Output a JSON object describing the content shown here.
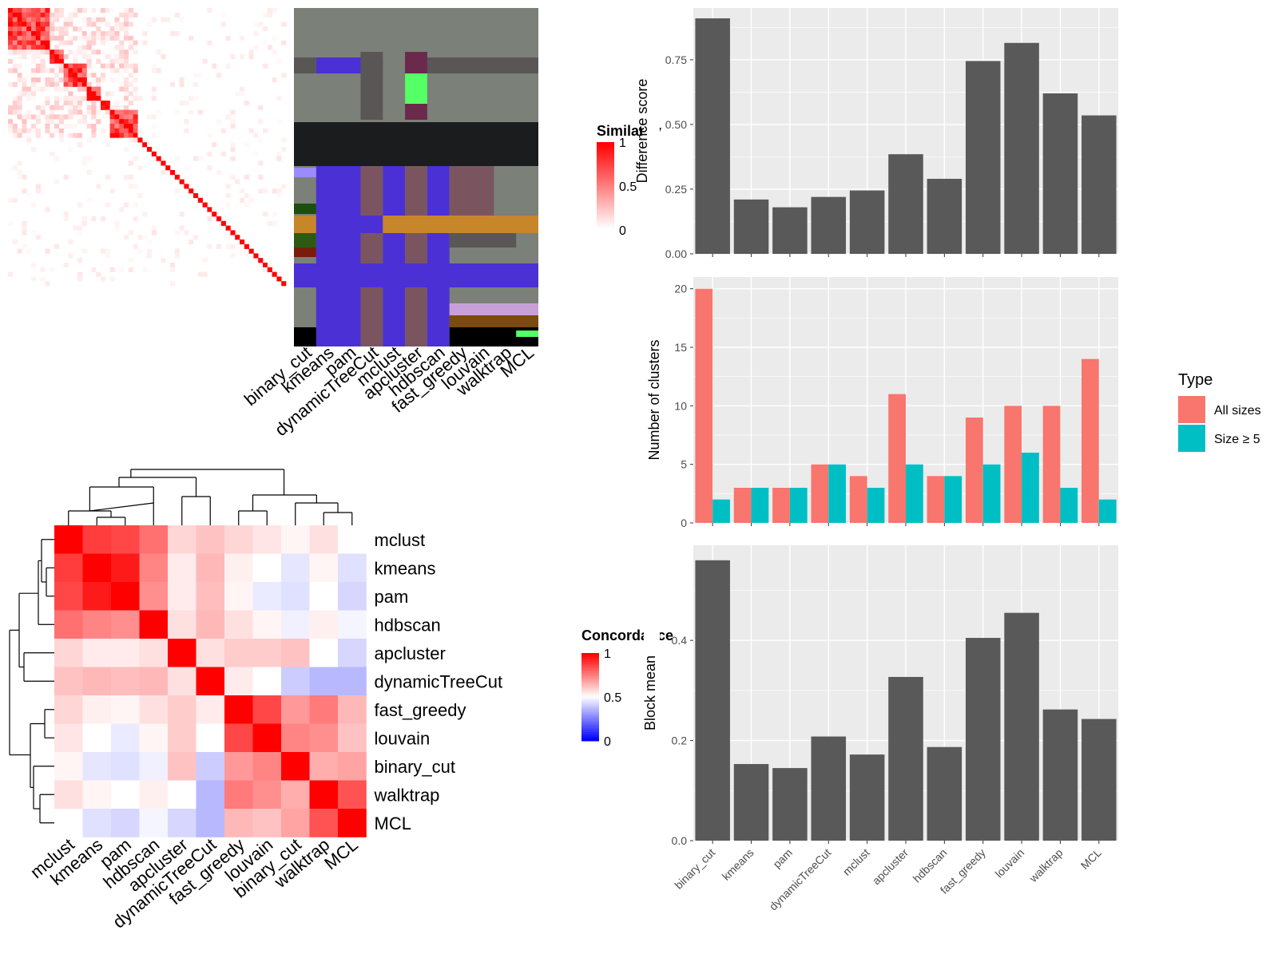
{
  "chart_data": [
    {
      "type": "heatmap",
      "legend_title": "Similarity",
      "legend_ticks": [
        "1",
        "0.5",
        "0"
      ],
      "colors": {
        "low": "#ffffff",
        "high": "#ff0000"
      }
    },
    {
      "type": "heatmap",
      "columns": [
        "binary_cut",
        "kmeans",
        "pam",
        "dynamicTreeCut",
        "mclust",
        "apcluster",
        "hdbscan",
        "fast_greedy",
        "louvain",
        "walktrap",
        "MCL"
      ]
    },
    {
      "type": "heatmap",
      "legend_title": "Concordance",
      "legend_ticks": [
        "1",
        "0.5",
        "0"
      ],
      "colors": {
        "low": "#0000ff",
        "mid": "#ffffff",
        "high": "#ff0000"
      },
      "row_labels": [
        "mclust",
        "kmeans",
        "pam",
        "hdbscan",
        "apcluster",
        "dynamicTreeCut",
        "fast_greedy",
        "louvain",
        "binary_cut",
        "walktrap",
        "MCL"
      ],
      "col_labels": [
        "mclust",
        "kmeans",
        "pam",
        "hdbscan",
        "apcluster",
        "dynamicTreeCut",
        "fast_greedy",
        "louvain",
        "binary_cut",
        "walktrap",
        "MCL"
      ],
      "values": [
        [
          1.0,
          0.88,
          0.86,
          0.78,
          0.58,
          0.62,
          0.58,
          0.55,
          0.52,
          0.56,
          0.5
        ],
        [
          0.88,
          1.0,
          0.95,
          0.74,
          0.54,
          0.64,
          0.53,
          0.5,
          0.45,
          0.52,
          0.44
        ],
        [
          0.86,
          0.95,
          1.0,
          0.72,
          0.54,
          0.63,
          0.52,
          0.46,
          0.44,
          0.5,
          0.42
        ],
        [
          0.78,
          0.74,
          0.72,
          1.0,
          0.56,
          0.64,
          0.56,
          0.52,
          0.47,
          0.53,
          0.48
        ],
        [
          0.58,
          0.54,
          0.54,
          0.56,
          1.0,
          0.56,
          0.6,
          0.6,
          0.62,
          0.5,
          0.42
        ],
        [
          0.62,
          0.64,
          0.63,
          0.64,
          0.56,
          1.0,
          0.54,
          0.5,
          0.4,
          0.36,
          0.36
        ],
        [
          0.58,
          0.53,
          0.52,
          0.56,
          0.6,
          0.54,
          1.0,
          0.86,
          0.7,
          0.76,
          0.64
        ],
        [
          0.55,
          0.5,
          0.46,
          0.52,
          0.6,
          0.5,
          0.86,
          1.0,
          0.74,
          0.72,
          0.62
        ],
        [
          0.52,
          0.45,
          0.44,
          0.47,
          0.62,
          0.4,
          0.7,
          0.74,
          1.0,
          0.66,
          0.68
        ],
        [
          0.56,
          0.52,
          0.5,
          0.53,
          0.5,
          0.36,
          0.76,
          0.72,
          0.66,
          1.0,
          0.84
        ],
        [
          0.5,
          0.44,
          0.42,
          0.48,
          0.42,
          0.36,
          0.64,
          0.62,
          0.68,
          0.84,
          1.0
        ]
      ]
    },
    {
      "type": "bar",
      "categories": [
        "binary_cut",
        "kmeans",
        "pam",
        "dynamicTreeCut",
        "mclust",
        "apcluster",
        "hdbscan",
        "fast_greedy",
        "louvain",
        "walktrap",
        "MCL"
      ],
      "values": [
        0.91,
        0.21,
        0.18,
        0.22,
        0.245,
        0.385,
        0.29,
        0.745,
        0.815,
        0.62,
        0.535
      ],
      "ylabel": "Difference score",
      "ylim": [
        0,
        0.95
      ],
      "yticks": [
        "0.00",
        "0.25",
        "0.50",
        "0.75"
      ],
      "grid": true
    },
    {
      "type": "bar",
      "categories": [
        "binary_cut",
        "kmeans",
        "pam",
        "dynamicTreeCut",
        "mclust",
        "apcluster",
        "hdbscan",
        "fast_greedy",
        "louvain",
        "walktrap",
        "MCL"
      ],
      "series": [
        {
          "name": "All sizes",
          "color": "#f8766d",
          "values": [
            20,
            3,
            3,
            5,
            4,
            11,
            4,
            9,
            10,
            10,
            14
          ]
        },
        {
          "name": "Size ≥ 5",
          "color": "#00bfc4",
          "values": [
            2,
            3,
            3,
            5,
            3,
            5,
            4,
            5,
            6,
            3,
            2
          ]
        }
      ],
      "ylabel": "Number of clusters",
      "ylim": [
        0,
        21
      ],
      "yticks": [
        "0",
        "5",
        "10",
        "15",
        "20"
      ],
      "legend_title": "Type",
      "legend_position": "right",
      "grid": true
    },
    {
      "type": "bar",
      "categories": [
        "binary_cut",
        "kmeans",
        "pam",
        "dynamicTreeCut",
        "mclust",
        "apcluster",
        "hdbscan",
        "fast_greedy",
        "louvain",
        "walktrap",
        "MCL"
      ],
      "values": [
        0.56,
        0.153,
        0.145,
        0.208,
        0.172,
        0.327,
        0.187,
        0.405,
        0.455,
        0.262,
        0.243
      ],
      "ylabel": "Block mean",
      "ylim": [
        0,
        0.59
      ],
      "yticks": [
        "0.0",
        "0.2",
        "0.4"
      ],
      "grid": true
    }
  ]
}
